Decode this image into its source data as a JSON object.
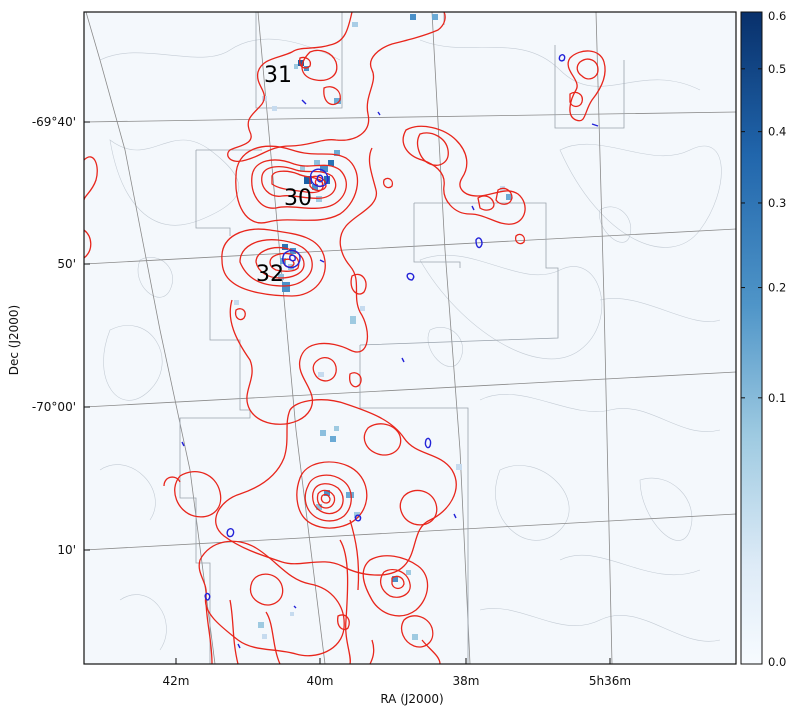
{
  "map": {
    "x_axis_label": "RA (J2000)",
    "y_axis_label": "Dec (J2000)",
    "ra_ticks": [
      "42m",
      "40m",
      "38m",
      "5h36m"
    ],
    "dec_ticks": [
      "-69°40'",
      "50'",
      "-70°00'",
      "10'"
    ],
    "region_labels": [
      "31",
      "30",
      "32"
    ],
    "colors": {
      "contour_red": "#e8261c",
      "contour_blue": "#2323d8",
      "contour_grey": "#b9c2cc",
      "grid": "#8a8a8a",
      "background_map": "#f4f8fc"
    }
  },
  "colorbar": {
    "scale": "sqrt",
    "colormap": "Blues",
    "ticks": [
      "0.6",
      "0.5",
      "0.4",
      "0.3",
      "0.2",
      "0.1",
      "0.0"
    ],
    "tick_values": [
      0.6,
      0.5,
      0.4,
      0.3,
      0.2,
      0.1,
      0.0
    ],
    "range": [
      0.0,
      0.6
    ]
  }
}
